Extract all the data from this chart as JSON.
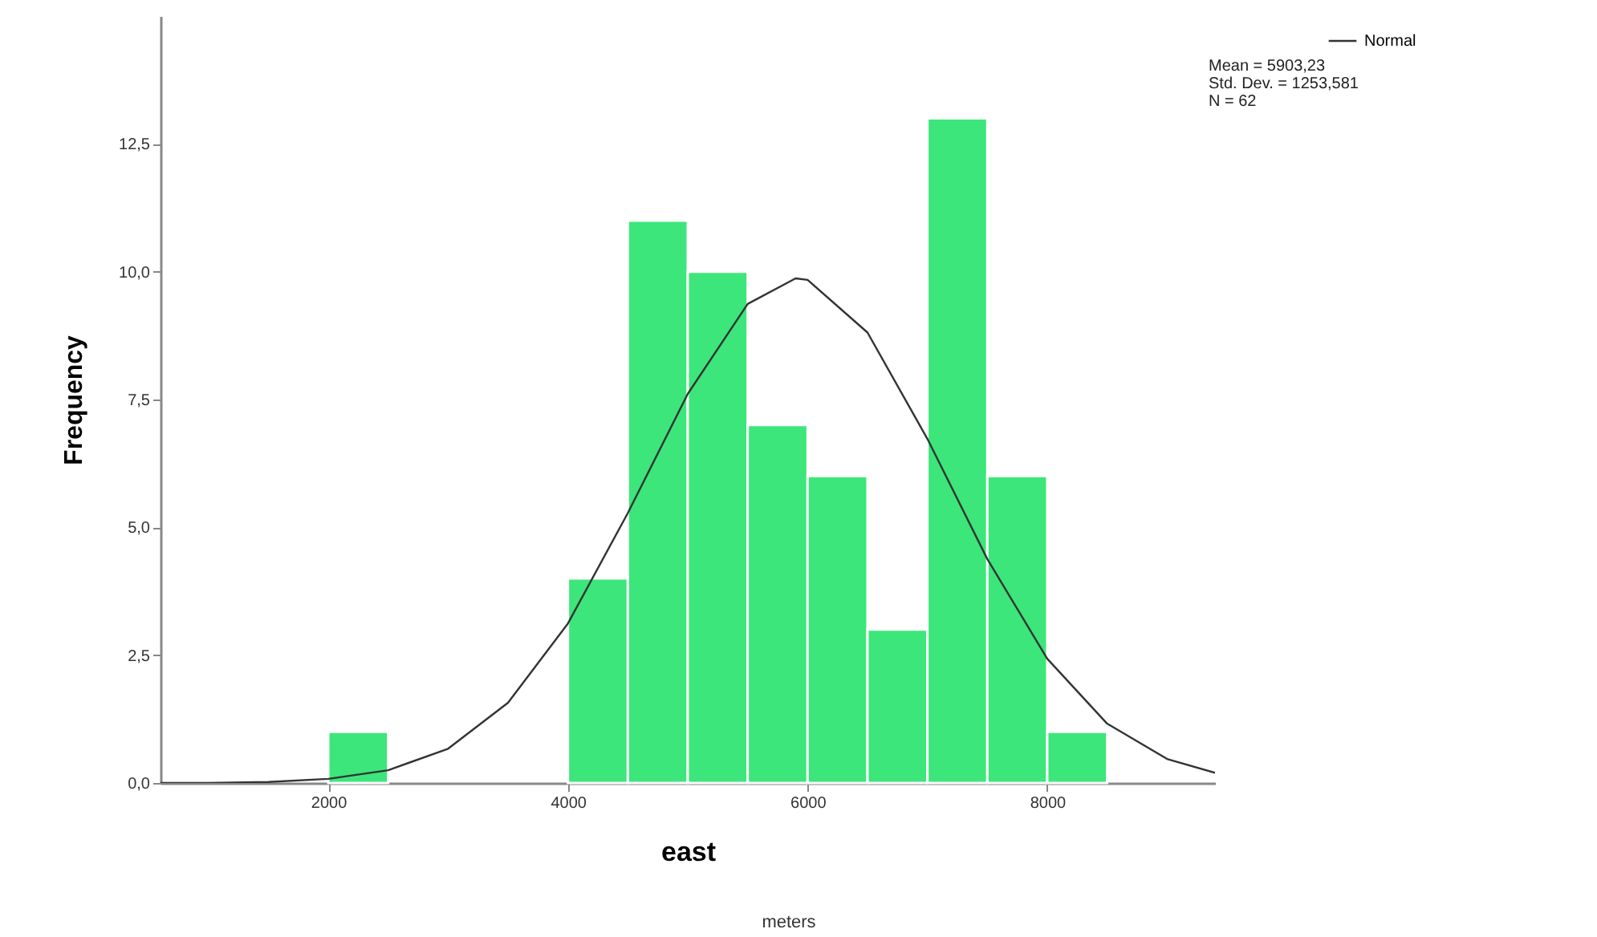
{
  "chart_data": {
    "type": "histogram",
    "xlabel": "east",
    "ylabel": "Frequency",
    "bins": [
      2000,
      2500,
      3000,
      3500,
      4000,
      4500,
      5000,
      5500,
      6000,
      6500,
      7000,
      7500,
      8000,
      8500
    ],
    "values": [
      1,
      0,
      0,
      0,
      4,
      11,
      10,
      7,
      6,
      3,
      13,
      6,
      1
    ],
    "color": "#3ce67a",
    "series": [
      {
        "name": "Normal",
        "type": "line",
        "color": "#333333",
        "x": [
          600,
          1000,
          1500,
          2000,
          2500,
          3000,
          3500,
          4000,
          4500,
          5000,
          5500,
          5900,
          6000,
          6500,
          7000,
          7500,
          8000,
          8500,
          9000,
          9400
        ],
        "values": [
          0.0,
          0.0,
          0.02,
          0.08,
          0.25,
          0.67,
          1.57,
          3.12,
          5.28,
          7.61,
          9.37,
          9.87,
          9.84,
          8.81,
          6.73,
          4.38,
          2.43,
          1.16,
          0.47,
          0.2
        ]
      }
    ],
    "xlim": [
      600,
      9400
    ],
    "xticks": [
      2000,
      4000,
      6000,
      8000
    ],
    "ylim": [
      0,
      15
    ],
    "yticks": [
      {
        "value": 0,
        "label": "0,0"
      },
      {
        "value": 2.5,
        "label": "2,5"
      },
      {
        "value": 5,
        "label": "5,0"
      },
      {
        "value": 7.5,
        "label": "7,5"
      },
      {
        "value": 10,
        "label": "10,0"
      },
      {
        "value": 12.5,
        "label": "12,5"
      }
    ],
    "grid": false,
    "legend": "top right",
    "annotations": [
      "Mean = 5903,23",
      "Std. Dev. = 1253,581",
      "N = 62",
      "meters"
    ]
  }
}
